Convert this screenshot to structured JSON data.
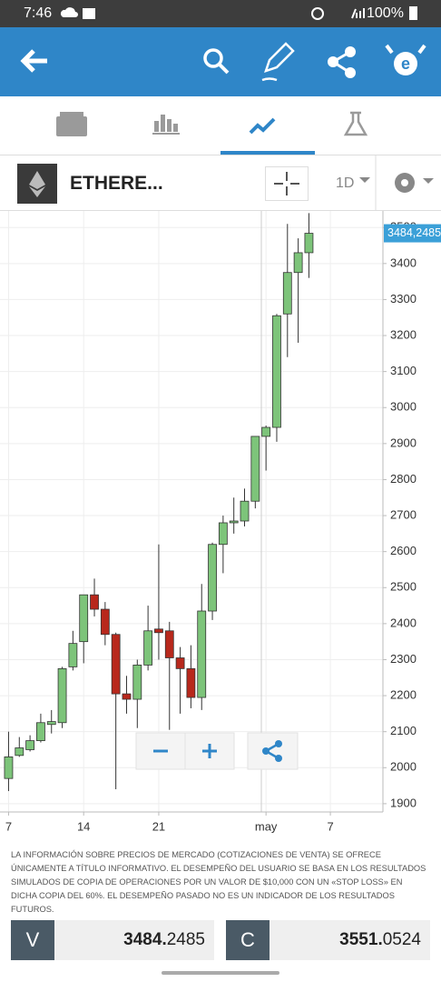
{
  "status_bar": {
    "time": "7:46",
    "battery": "100%"
  },
  "instrument": {
    "name": "ETHERE...",
    "timeframe": "1D"
  },
  "chart_data": {
    "type": "candlestick",
    "x": [
      7,
      8,
      9,
      10,
      11,
      12,
      13,
      14,
      15,
      16,
      17,
      18,
      19,
      20,
      21,
      22,
      23,
      24,
      25,
      26,
      27,
      28,
      29,
      30,
      31,
      32,
      33,
      34,
      35
    ],
    "open": [
      1970,
      2034,
      2050,
      2075,
      2120,
      2125,
      2280,
      2350,
      2480,
      2440,
      2370,
      2205,
      2190,
      2285,
      2385,
      2380,
      2305,
      2275,
      2195,
      2435,
      2620,
      2680,
      2685,
      2740,
      2920,
      2945,
      3260,
      3375,
      3430
    ],
    "high": [
      2100,
      2085,
      2090,
      2150,
      2160,
      2280,
      2380,
      2480,
      2525,
      2460,
      2375,
      2255,
      2300,
      2450,
      2620,
      2405,
      2335,
      2340,
      2510,
      2625,
      2700,
      2750,
      2775,
      2920,
      2950,
      3260,
      3510,
      3470,
      3540
    ],
    "low": [
      1935,
      2030,
      2045,
      2070,
      2095,
      2110,
      2270,
      2290,
      2420,
      2340,
      1940,
      2150,
      2110,
      2270,
      2300,
      2105,
      2150,
      2165,
      2160,
      2410,
      2540,
      2650,
      2670,
      2720,
      2825,
      2905,
      3140,
      3180,
      3360
    ],
    "close": [
      2030,
      2055,
      2075,
      2125,
      2128,
      2275,
      2345,
      2480,
      2440,
      2370,
      2205,
      2190,
      2285,
      2380,
      2375,
      2305,
      2275,
      2195,
      2435,
      2620,
      2680,
      2685,
      2740,
      2920,
      2945,
      3255,
      3375,
      3430,
      3484
    ],
    "up_color": "#7dc47a",
    "down_color": "#b8281c",
    "xlim": [
      6.2,
      41.9
    ],
    "xticks": [
      7,
      14,
      21,
      {
        "value": 31,
        "label": "may"
      },
      {
        "value": 37,
        "label": "7"
      }
    ],
    "ylim": [
      1877,
      3546
    ],
    "yticks": [
      1900,
      2000,
      2100,
      2200,
      2300,
      2400,
      2500,
      2600,
      2700,
      2800,
      2900,
      3000,
      3100,
      3200,
      3300,
      3400,
      3500
    ],
    "grid": true,
    "last_price_label": "3484,2485"
  },
  "disclaimer": "LA INFORMACIÓN SOBRE PRECIOS DE MERCADO (COTIZACIONES DE VENTA) SE OFRECE ÚNICAMENTE A TÍTULO INFORMATIVO. EL DESEMPEÑO DEL USUARIO SE BASA EN LOS RESULTADOS SIMULADOS DE COPIA DE OPERACIONES POR UN VALOR DE $10,000 CON UN «STOP LOSS» EN DICHA COPIA DEL 60%. EL DESEMPEÑO PASADO NO ES UN INDICADOR DE LOS RESULTADOS FUTUROS.",
  "sell": {
    "label": "V",
    "price_main": "3484.",
    "price_decimals": "2485"
  },
  "buy": {
    "label": "C",
    "price_main": "3551.",
    "price_decimals": "0524"
  }
}
